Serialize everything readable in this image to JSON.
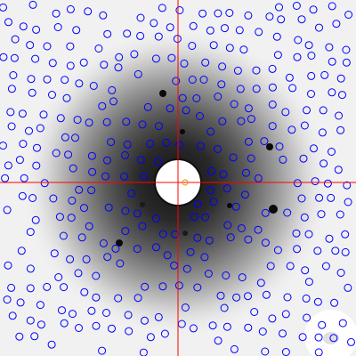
{
  "viewer": {
    "colors": {
      "background": "#f1f1f1",
      "halo_dark": "#1a1a1a",
      "spot_ring": "#0000ff",
      "crosshair": "#ff0000",
      "aperture_fill": "#ffffff",
      "aperture_rim": "#111111",
      "center_marker": "#e8a020",
      "dark_spot": "#0a0a0a"
    },
    "icons": [
      "crosshair-icon",
      "center-marker-icon"
    ],
    "spot_count_visible": "many"
  }
}
